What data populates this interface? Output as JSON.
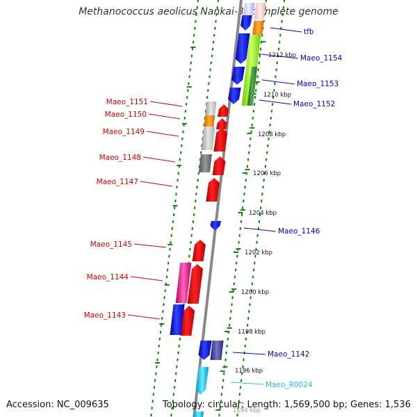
{
  "title": "Methanococcus aeolicus Nankai-3, complete genome",
  "footer": {
    "accession": "Accession: NC_009635",
    "summary": "Topology: circular; Length: 1,569,500 bp; Genes: 1,536"
  },
  "scale_labels": [
    "1212 kbp",
    "1210 kbp",
    "1208 kbp",
    "1206 kbp",
    "1204 kbp",
    "1202 kbp",
    "1200 kbp",
    "1198 kbp",
    "1196 kbp",
    "1194 kbp"
  ],
  "genes_right": [
    {
      "name": "tfb",
      "color": "#0000cc"
    },
    {
      "name": "Maeo_1154",
      "color": "#0000cc"
    },
    {
      "name": "Maeo_1153",
      "color": "#0000cc"
    },
    {
      "name": "Maeo_1152",
      "color": "#0000cc"
    },
    {
      "name": "Maeo_1146",
      "color": "#0000cc"
    },
    {
      "name": "Maeo_1142",
      "color": "#0000cc"
    },
    {
      "name": "Maeo_R0024",
      "color": "#22bbdd"
    }
  ],
  "genes_left": [
    {
      "name": "Maeo_1151",
      "color": "#cc0000"
    },
    {
      "name": "Maeo_1150",
      "color": "#cc0000"
    },
    {
      "name": "Maeo_1149",
      "color": "#cc0000"
    },
    {
      "name": "Maeo_1148",
      "color": "#cc0000"
    },
    {
      "name": "Maeo_1147",
      "color": "#cc0000"
    },
    {
      "name": "Maeo_1145",
      "color": "#cc0000"
    },
    {
      "name": "Maeo_1144",
      "color": "#cc0000"
    },
    {
      "name": "Maeo_1143",
      "color": "#cc0000"
    }
  ],
  "colors": {
    "forward_strand": "#0000ee",
    "reverse_strand": "#ee0000",
    "rna": "#33ccee",
    "scale_dots": "#118811",
    "backbone": "#888888"
  }
}
